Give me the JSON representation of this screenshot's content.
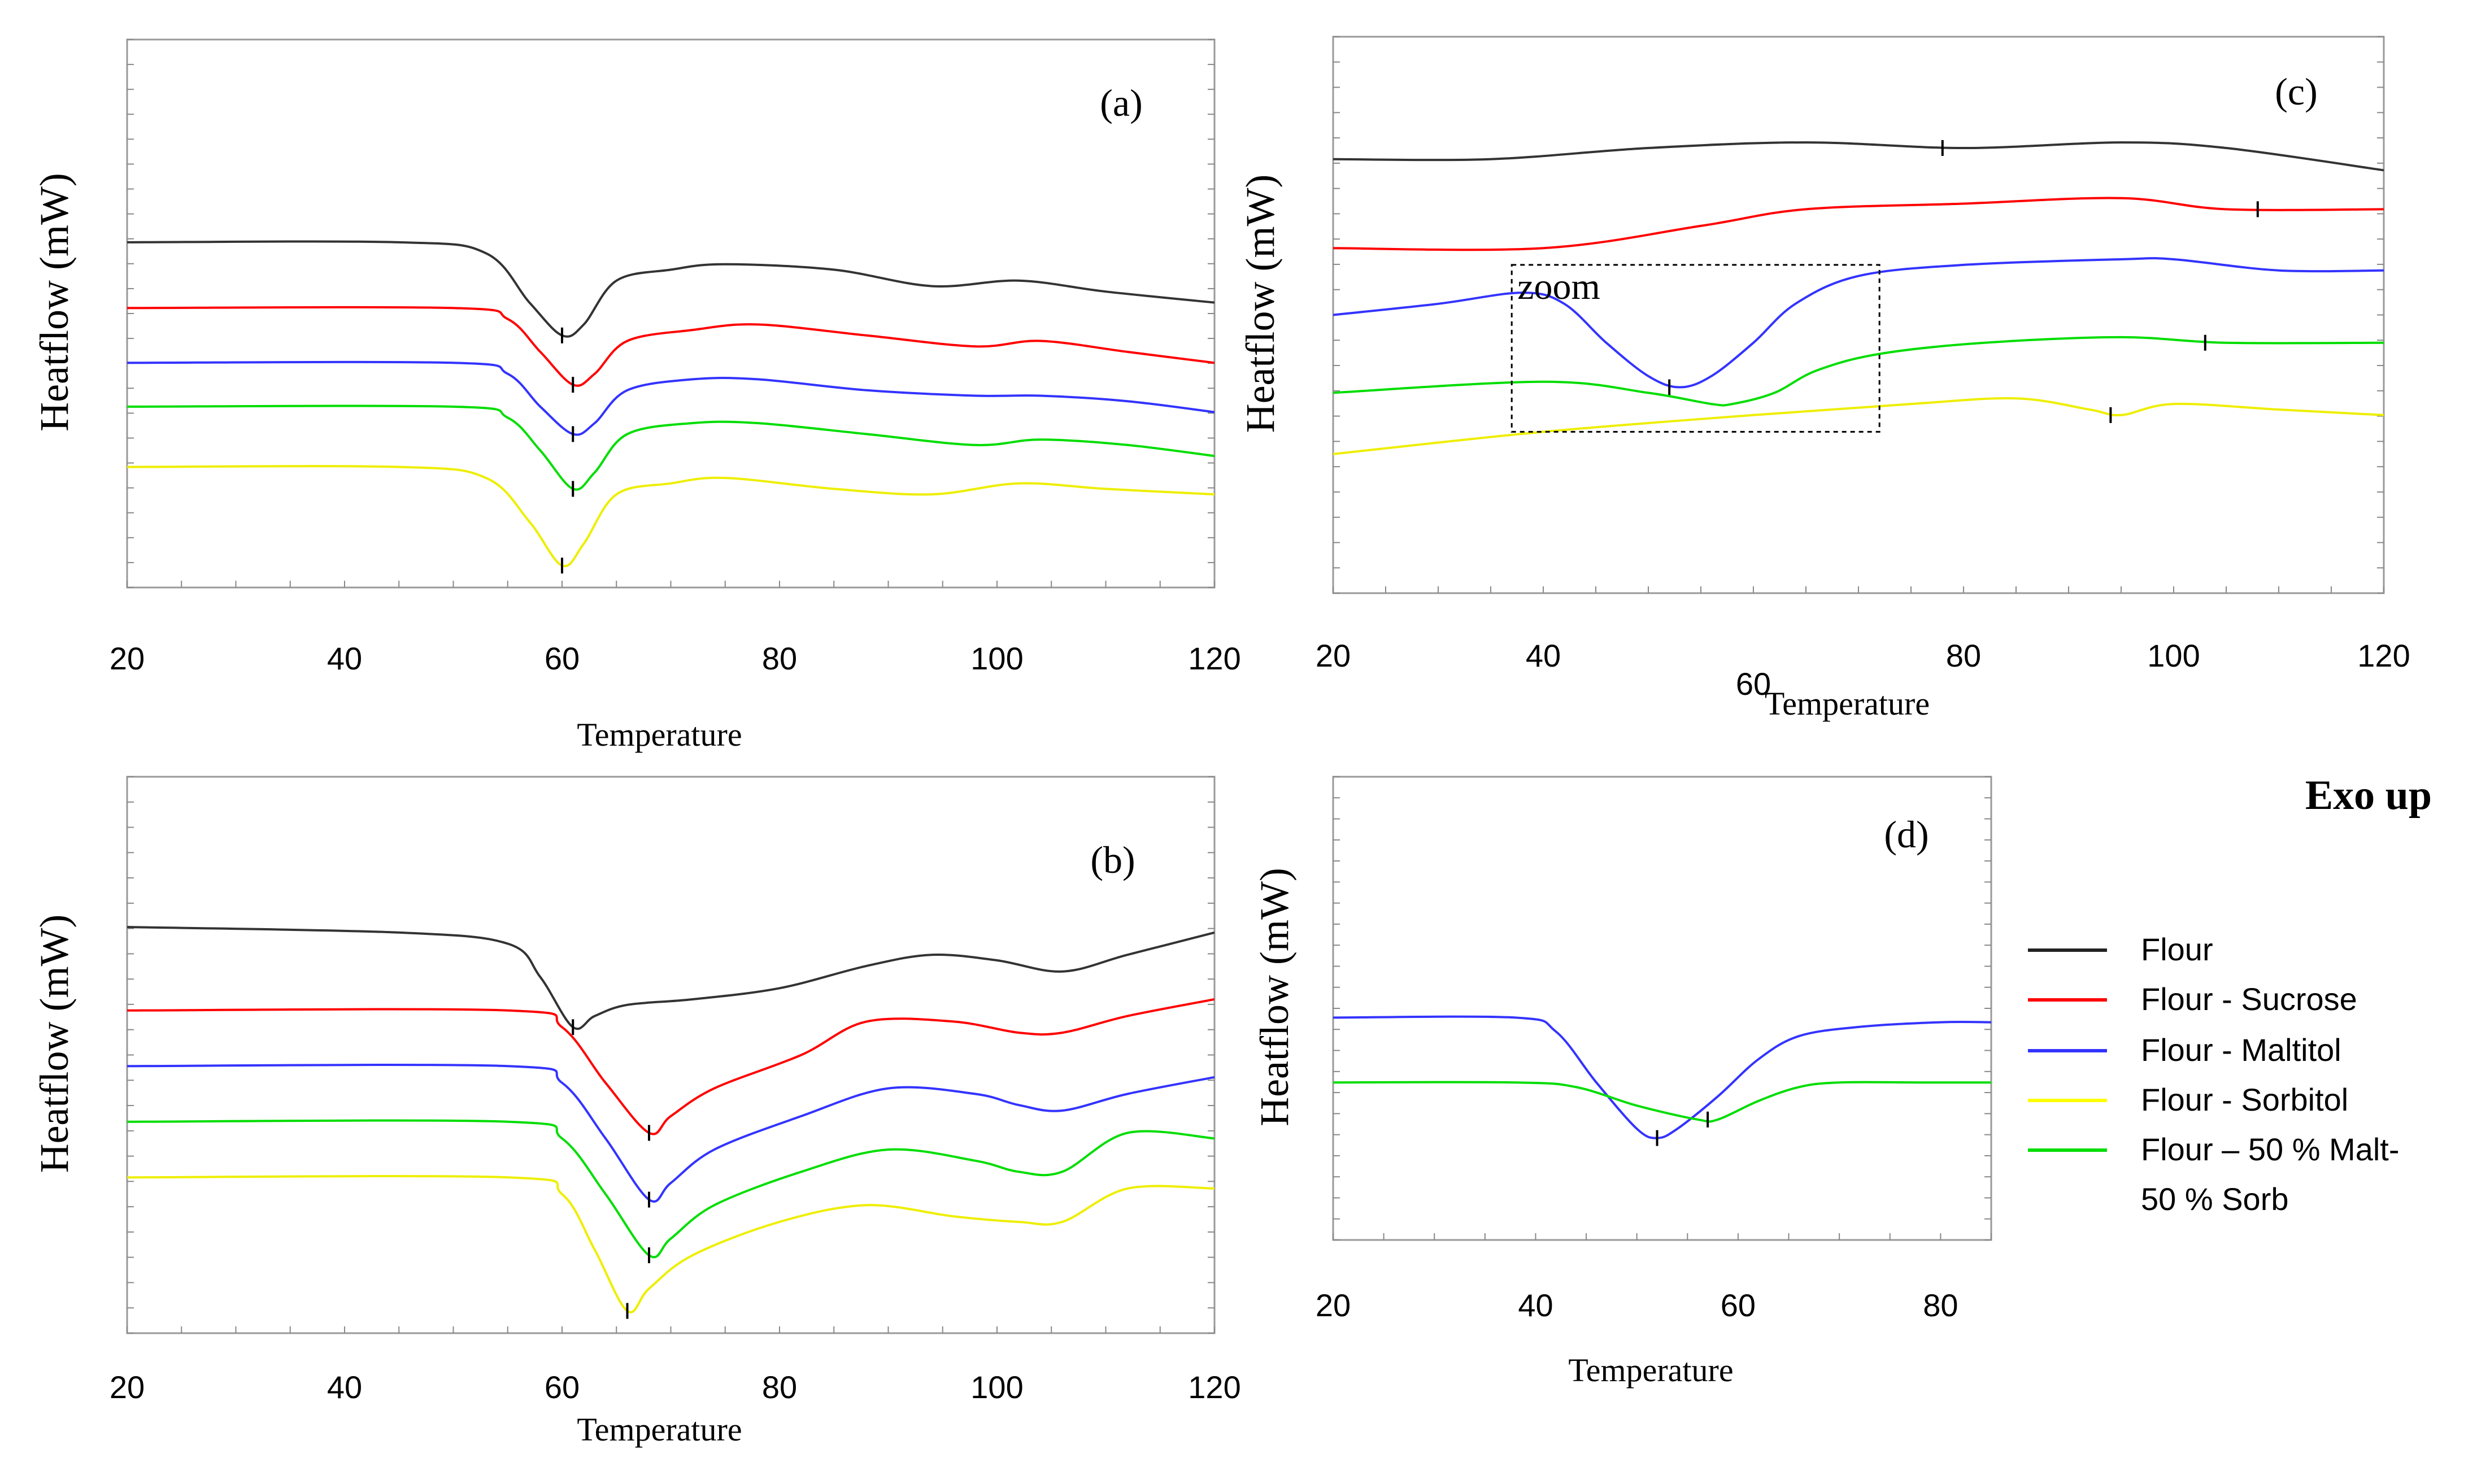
{
  "figure_note": "Exo up",
  "legend": [
    {
      "label": "Flour",
      "color": "#222222"
    },
    {
      "label": "Flour - Sucrose",
      "color": "#ff0000"
    },
    {
      "label": "Flour - Maltitol",
      "color": "#3333ff"
    },
    {
      "label": "Flour - Sorbitol",
      "color": "#ffff00"
    },
    {
      "label": "Flour – 50 % Malt-",
      "label2": "50 % Sorb",
      "color": "#00dd00"
    }
  ],
  "chart_data": [
    {
      "id": "a",
      "panel_label": "(a)",
      "type": "line",
      "xlabel": "Temperature",
      "ylabel": "Heatflow (mW)",
      "xlim": [
        20,
        120
      ],
      "ylim": [
        0,
        100
      ],
      "x_ticks": [
        "20",
        "40",
        "60",
        "80",
        "100",
        "120"
      ],
      "series": [
        {
          "name": "Flour",
          "color": "#333333",
          "points": [
            [
              20,
              63
            ],
            [
              45,
              63
            ],
            [
              53,
              61
            ],
            [
              57,
              52
            ],
            [
              60,
              46
            ],
            [
              62,
              48
            ],
            [
              65,
              56
            ],
            [
              70,
              58
            ],
            [
              75,
              59
            ],
            [
              85,
              58
            ],
            [
              94,
              55
            ],
            [
              102,
              56
            ],
            [
              110,
              54
            ],
            [
              120,
              52
            ]
          ],
          "peak": [
            60,
            46
          ]
        },
        {
          "name": "Flour - Sucrose",
          "color": "#ff0000",
          "points": [
            [
              20,
              51
            ],
            [
              50,
              51
            ],
            [
              55,
              49
            ],
            [
              58,
              43
            ],
            [
              61,
              37
            ],
            [
              63,
              39
            ],
            [
              66,
              45
            ],
            [
              72,
              47
            ],
            [
              78,
              48
            ],
            [
              88,
              46
            ],
            [
              98,
              44
            ],
            [
              104,
              45
            ],
            [
              112,
              43
            ],
            [
              120,
              41
            ]
          ],
          "peak": [
            61,
            37
          ]
        },
        {
          "name": "Flour - Maltitol",
          "color": "#3333ff",
          "points": [
            [
              20,
              41
            ],
            [
              50,
              41
            ],
            [
              55,
              39
            ],
            [
              58,
              33
            ],
            [
              61,
              28
            ],
            [
              63,
              30
            ],
            [
              66,
              36
            ],
            [
              72,
              38
            ],
            [
              78,
              38
            ],
            [
              88,
              36
            ],
            [
              98,
              35
            ],
            [
              104,
              35
            ],
            [
              112,
              34
            ],
            [
              120,
              32
            ]
          ],
          "peak": [
            61,
            28
          ]
        },
        {
          "name": "Flour - 50 % Malt-50 % Sorb",
          "color": "#00dd00",
          "points": [
            [
              20,
              33
            ],
            [
              50,
              33
            ],
            [
              55,
              31
            ],
            [
              58,
              25
            ],
            [
              61,
              18
            ],
            [
              63,
              21
            ],
            [
              66,
              28
            ],
            [
              72,
              30
            ],
            [
              78,
              30
            ],
            [
              88,
              28
            ],
            [
              98,
              26
            ],
            [
              104,
              27
            ],
            [
              112,
              26
            ],
            [
              120,
              24
            ]
          ],
          "peak": [
            61,
            18
          ]
        },
        {
          "name": "Flour - Sorbitol",
          "color": "#eeee00",
          "points": [
            [
              20,
              22
            ],
            [
              45,
              22
            ],
            [
              53,
              20
            ],
            [
              57,
              12
            ],
            [
              60,
              4
            ],
            [
              62,
              8
            ],
            [
              65,
              17
            ],
            [
              70,
              19
            ],
            [
              75,
              20
            ],
            [
              85,
              18
            ],
            [
              94,
              17
            ],
            [
              102,
              19
            ],
            [
              110,
              18
            ],
            [
              120,
              17
            ]
          ],
          "peak": [
            60,
            4
          ]
        }
      ]
    },
    {
      "id": "b",
      "panel_label": "(b)",
      "type": "line",
      "xlabel": "Temperature",
      "ylabel": "Heatflow (mW)",
      "xlim": [
        20,
        120
      ],
      "ylim": [
        0,
        100
      ],
      "x_ticks": [
        "20",
        "40",
        "60",
        "80",
        "100",
        "120"
      ],
      "series": [
        {
          "name": "Flour",
          "color": "#333333",
          "points": [
            [
              20,
              73
            ],
            [
              45,
              72
            ],
            [
              55,
              70
            ],
            [
              58,
              64
            ],
            [
              61,
              55
            ],
            [
              63,
              57
            ],
            [
              66,
              59
            ],
            [
              72,
              60
            ],
            [
              80,
              62
            ],
            [
              88,
              66
            ],
            [
              94,
              68
            ],
            [
              100,
              67
            ],
            [
              106,
              65
            ],
            [
              112,
              68
            ],
            [
              120,
              72
            ]
          ],
          "peak": [
            61,
            55
          ]
        },
        {
          "name": "Flour - Sucrose",
          "color": "#ff0000",
          "points": [
            [
              20,
              58
            ],
            [
              55,
              58
            ],
            [
              60,
              55
            ],
            [
              64,
              45
            ],
            [
              68,
              36
            ],
            [
              70,
              39
            ],
            [
              74,
              44
            ],
            [
              82,
              50
            ],
            [
              88,
              56
            ],
            [
              96,
              56
            ],
            [
              102,
              54
            ],
            [
              106,
              54
            ],
            [
              112,
              57
            ],
            [
              120,
              60
            ]
          ],
          "peak": [
            68,
            36
          ]
        },
        {
          "name": "Flour - Maltitol",
          "color": "#3333ff",
          "points": [
            [
              20,
              48
            ],
            [
              55,
              48
            ],
            [
              60,
              45
            ],
            [
              64,
              35
            ],
            [
              68,
              24
            ],
            [
              70,
              27
            ],
            [
              74,
              33
            ],
            [
              82,
              39
            ],
            [
              90,
              44
            ],
            [
              98,
              43
            ],
            [
              102,
              41
            ],
            [
              106,
              40
            ],
            [
              112,
              43
            ],
            [
              120,
              46
            ]
          ],
          "peak": [
            68,
            24
          ]
        },
        {
          "name": "Flour - 50 % Malt-50 % Sorb",
          "color": "#00dd00",
          "points": [
            [
              20,
              38
            ],
            [
              55,
              38
            ],
            [
              60,
              35
            ],
            [
              64,
              25
            ],
            [
              68,
              14
            ],
            [
              70,
              17
            ],
            [
              74,
              23
            ],
            [
              82,
              29
            ],
            [
              90,
              33
            ],
            [
              98,
              31
            ],
            [
              102,
              29
            ],
            [
              106,
              29
            ],
            [
              112,
              36
            ],
            [
              120,
              35
            ]
          ],
          "peak": [
            68,
            14
          ]
        },
        {
          "name": "Flour - Sorbitol",
          "color": "#eeee00",
          "points": [
            [
              20,
              28
            ],
            [
              55,
              28
            ],
            [
              60,
              25
            ],
            [
              63,
              15
            ],
            [
              66,
              4
            ],
            [
              68,
              8
            ],
            [
              72,
              14
            ],
            [
              80,
              20
            ],
            [
              88,
              23
            ],
            [
              96,
              21
            ],
            [
              102,
              20
            ],
            [
              106,
              20
            ],
            [
              112,
              26
            ],
            [
              120,
              26
            ]
          ],
          "peak": [
            66,
            4
          ]
        }
      ]
    },
    {
      "id": "c",
      "panel_label": "(c)",
      "type": "line",
      "xlabel": "Temperature",
      "ylabel": "Heatflow (mW)",
      "xlim": [
        20,
        120
      ],
      "ylim": [
        0,
        100
      ],
      "x_ticks": [
        "20",
        "40",
        "60",
        "80",
        "100",
        "120"
      ],
      "annotation": "zoom",
      "zoom_box": {
        "x_range": [
          37,
          72
        ],
        "y_range": [
          29,
          59
        ]
      },
      "series": [
        {
          "name": "Flour",
          "color": "#333333",
          "points": [
            [
              20,
              78
            ],
            [
              35,
              78
            ],
            [
              50,
              80
            ],
            [
              65,
              81
            ],
            [
              80,
              80
            ],
            [
              95,
              81
            ],
            [
              105,
              80
            ],
            [
              120,
              76
            ]
          ],
          "peak": [
            78,
            80
          ]
        },
        {
          "name": "Flour - Sucrose",
          "color": "#ff0000",
          "points": [
            [
              20,
              62
            ],
            [
              40,
              62
            ],
            [
              55,
              66
            ],
            [
              65,
              69
            ],
            [
              80,
              70
            ],
            [
              95,
              71
            ],
            [
              105,
              69
            ],
            [
              120,
              69
            ]
          ],
          "peak": [
            108,
            69
          ]
        },
        {
          "name": "Flour - Maltitol",
          "color": "#3333ff",
          "points": [
            [
              20,
              50
            ],
            [
              30,
              52
            ],
            [
              38,
              54
            ],
            [
              42,
              52
            ],
            [
              46,
              45
            ],
            [
              50,
              39
            ],
            [
              53,
              37
            ],
            [
              56,
              39
            ],
            [
              60,
              45
            ],
            [
              64,
              52
            ],
            [
              70,
              57
            ],
            [
              80,
              59
            ],
            [
              95,
              60
            ],
            [
              100,
              60
            ],
            [
              110,
              58
            ],
            [
              120,
              58
            ]
          ],
          "peak": [
            52,
            37
          ]
        },
        {
          "name": "Flour - 50 % Malt-50 % Sorb",
          "color": "#00dd00",
          "points": [
            [
              20,
              36
            ],
            [
              40,
              38
            ],
            [
              50,
              36
            ],
            [
              56,
              34
            ],
            [
              58,
              34
            ],
            [
              62,
              36
            ],
            [
              66,
              40
            ],
            [
              72,
              43
            ],
            [
              82,
              45
            ],
            [
              95,
              46
            ],
            [
              105,
              45
            ],
            [
              120,
              45
            ]
          ],
          "peak": [
            103,
            45
          ]
        },
        {
          "name": "Flour - Sorbitol",
          "color": "#eeee00",
          "points": [
            [
              20,
              25
            ],
            [
              40,
              29
            ],
            [
              60,
              32
            ],
            [
              75,
              34
            ],
            [
              85,
              35
            ],
            [
              92,
              33
            ],
            [
              95,
              32
            ],
            [
              100,
              34
            ],
            [
              110,
              33
            ],
            [
              120,
              32
            ]
          ],
          "peak": [
            94,
            32
          ]
        }
      ]
    },
    {
      "id": "d",
      "panel_label": "(d)",
      "type": "line",
      "xlabel": "Temperature",
      "ylabel": "Heatflow (mW)",
      "xlim": [
        20,
        85
      ],
      "ylim": [
        0,
        100
      ],
      "x_ticks": [
        "20",
        "40",
        "60",
        "80"
      ],
      "series": [
        {
          "name": "Flour - Maltitol",
          "color": "#3333ff",
          "points": [
            [
              20,
              48
            ],
            [
              38,
              48
            ],
            [
              42,
              45
            ],
            [
              46,
              34
            ],
            [
              50,
              24
            ],
            [
              52,
              22
            ],
            [
              54,
              24
            ],
            [
              58,
              31
            ],
            [
              62,
              39
            ],
            [
              66,
              44
            ],
            [
              72,
              46
            ],
            [
              80,
              47
            ],
            [
              85,
              47
            ]
          ],
          "peak": [
            52,
            22
          ]
        },
        {
          "name": "Flour - 50 % Malt-50 % Sorb",
          "color": "#00dd00",
          "points": [
            [
              20,
              34
            ],
            [
              38,
              34
            ],
            [
              44,
              33
            ],
            [
              50,
              29
            ],
            [
              56,
              26
            ],
            [
              58,
              26
            ],
            [
              62,
              30
            ],
            [
              66,
              33
            ],
            [
              70,
              34
            ],
            [
              78,
              34
            ],
            [
              85,
              34
            ]
          ],
          "peak": [
            57,
            26
          ]
        }
      ]
    }
  ]
}
